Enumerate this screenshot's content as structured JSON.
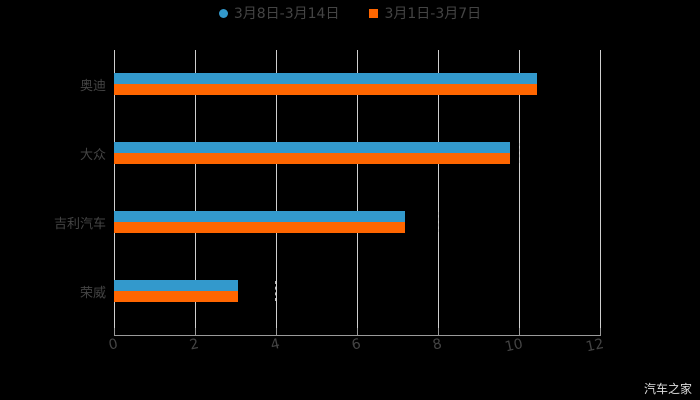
{
  "chart_data": {
    "type": "bar",
    "orientation": "horizontal",
    "title": "",
    "categories": [
      "奥迪",
      "大众",
      "吉利汽车",
      "荣威"
    ],
    "series": [
      {
        "name": "3月8日-3月14日",
        "color": "#3399cc",
        "values": [
          10.44,
          9.78,
          7.19,
          3.06
        ]
      },
      {
        "name": "3月1日-3月7日",
        "color": "#ff6600",
        "values": [
          10.44,
          9.78,
          7.19,
          3.06
        ]
      }
    ],
    "xlabel": "",
    "ylabel": "",
    "xlim": [
      0,
      12
    ],
    "xticks": [
      "0",
      "2",
      "4",
      "6",
      "8",
      "10",
      "12"
    ],
    "grid": true,
    "legend_position": "top"
  },
  "legend": {
    "items": [
      {
        "label": "3月8日-3月14日",
        "color": "#3399cc",
        "shape": "circle"
      },
      {
        "label": "3月1日-3月7日",
        "color": "#ff6600",
        "shape": "square"
      }
    ]
  },
  "watermark": "汽车之家"
}
